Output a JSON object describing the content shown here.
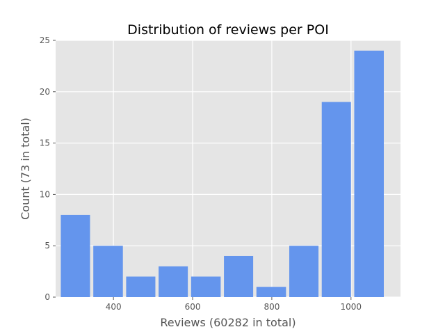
{
  "chart_data": {
    "type": "bar",
    "title": "Distribution of reviews per POI",
    "xlabel": "Reviews (60282 in total)",
    "ylabel": "Count (73 in total)",
    "xlim": [
      254,
      1125
    ],
    "ylim": [
      0,
      25
    ],
    "xticks": [
      400,
      600,
      800,
      1000
    ],
    "yticks": [
      0,
      5,
      10,
      15,
      20,
      25
    ],
    "grid": true,
    "bins": [
      {
        "start": 263,
        "end": 345,
        "count": 8
      },
      {
        "start": 345,
        "end": 428,
        "count": 5
      },
      {
        "start": 428,
        "end": 510,
        "count": 2
      },
      {
        "start": 510,
        "end": 592,
        "count": 3
      },
      {
        "start": 592,
        "end": 675,
        "count": 2
      },
      {
        "start": 675,
        "end": 757,
        "count": 4
      },
      {
        "start": 757,
        "end": 840,
        "count": 1
      },
      {
        "start": 840,
        "end": 922,
        "count": 5
      },
      {
        "start": 922,
        "end": 1004,
        "count": 19
      },
      {
        "start": 1004,
        "end": 1087,
        "count": 24
      }
    ],
    "colors": {
      "bar": "#6495ED",
      "background": "#E5E5E5",
      "grid": "#FFFFFF",
      "text": "#555555"
    }
  }
}
